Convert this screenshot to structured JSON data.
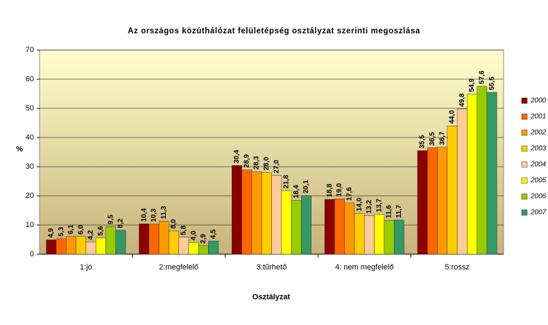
{
  "chart_data": {
    "type": "bar",
    "title": "Az országos közúthálózat felületépség osztályzat szerinti megoszlása",
    "x_label": "Osztályzat",
    "y_label": "%",
    "categories": [
      "1:jó",
      "2:megfelelő",
      "3:tűrhető",
      "4: nem megfelelő",
      "5:rossz"
    ],
    "series": [
      {
        "name": "2000",
        "color": "#8b0000",
        "values": [
          4.9,
          10.4,
          30.4,
          18.8,
          35.5
        ],
        "value_labels": [
          "4,9",
          "10,4",
          "30,4",
          "18,8",
          "35,5"
        ]
      },
      {
        "name": "2001",
        "color": "#ff6600",
        "values": [
          5.3,
          10.3,
          28.9,
          19.0,
          36.5
        ],
        "value_labels": [
          "5,3",
          "10,3",
          "28,9",
          "19,0",
          "36,5"
        ]
      },
      {
        "name": "2002",
        "color": "#ff9900",
        "values": [
          6.1,
          11.3,
          28.3,
          17.6,
          36.7
        ],
        "value_labels": [
          "6,1",
          "11,3",
          "28,3",
          "17,6",
          "36,7"
        ]
      },
      {
        "name": "2003",
        "color": "#ffcc00",
        "values": [
          6.0,
          8.0,
          28.0,
          14.0,
          44.0
        ],
        "value_labels": [
          "6,0",
          "8,0",
          "28,0",
          "14,0",
          "44,0"
        ]
      },
      {
        "name": "2004",
        "color": "#ffcc99",
        "values": [
          4.2,
          5.8,
          27.0,
          13.2,
          49.8
        ],
        "value_labels": [
          "4,2",
          "5,8",
          "27,0",
          "13,2",
          "49,8"
        ]
      },
      {
        "name": "2005",
        "color": "#ffff00",
        "values": [
          5.6,
          4.0,
          21.8,
          13.7,
          54.9
        ],
        "value_labels": [
          "5,6",
          "4,0",
          "21,8",
          "13,7",
          "54,9"
        ]
      },
      {
        "name": "2006",
        "color": "#99cc00",
        "values": [
          9.5,
          2.9,
          18.4,
          11.6,
          57.6
        ],
        "value_labels": [
          "9,5",
          "2,9",
          "18,4",
          "11,6",
          "57,6"
        ]
      },
      {
        "name": "2007",
        "color": "#339966",
        "values": [
          8.2,
          4.5,
          20.1,
          11.7,
          55.5
        ],
        "value_labels": [
          "8,2",
          "4,5",
          "20,1",
          "11,7",
          "55,5"
        ]
      }
    ],
    "ylim": [
      0,
      70
    ],
    "yticks": [
      0,
      10,
      20,
      30,
      40,
      50,
      60,
      70
    ],
    "grid": true,
    "legend": "right"
  }
}
